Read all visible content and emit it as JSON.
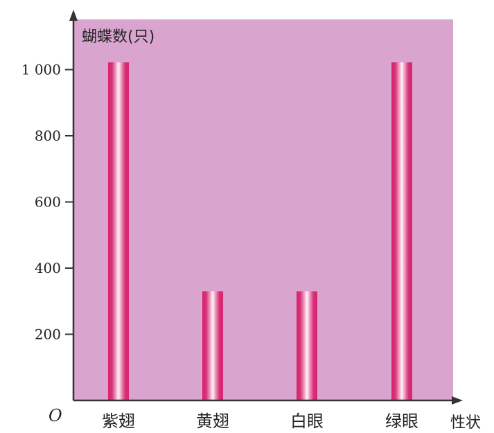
{
  "chart_data": {
    "type": "bar",
    "categories": [
      "紫翅",
      "黄翅",
      "白眼",
      "绿眼"
    ],
    "values": [
      1022,
      330,
      330,
      1022
    ],
    "ylabel": "蝴蝶数(只)",
    "xlabel": "性状",
    "origin_label": "O",
    "yticks": [
      200,
      400,
      600,
      800,
      1000
    ],
    "ytick_labels": [
      "200",
      "400",
      "600",
      "800",
      "1 000"
    ],
    "ylim": [
      0,
      1150
    ],
    "grid": false,
    "legend": "none",
    "colors": {
      "plot_background": "#d9a5cf",
      "bar_edge": "#d8246e",
      "bar_center": "#fff4f8",
      "axis": "#333333"
    }
  }
}
